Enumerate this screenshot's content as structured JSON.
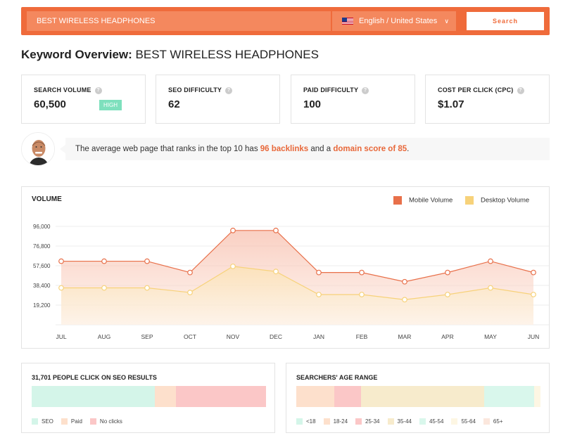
{
  "search": {
    "query": "BEST WIRELESS HEADPHONES",
    "language": "English / United States",
    "button": "Search"
  },
  "title": {
    "prefix": "Keyword Overview:",
    "keyword": "BEST WIRELESS HEADPHONES"
  },
  "metrics": [
    {
      "label": "SEARCH VOLUME",
      "value": "60,500",
      "badge": "HIGH"
    },
    {
      "label": "SEO DIFFICULTY",
      "value": "62"
    },
    {
      "label": "PAID DIFFICULTY",
      "value": "100"
    },
    {
      "label": "COST PER CLICK (CPC)",
      "value": "$1.07"
    }
  ],
  "tip": {
    "pre": "The average web page that ranks in the top 10 has ",
    "backlinks": "96 backlinks",
    "mid": " and a ",
    "domain": "domain score of 85",
    "post": "."
  },
  "volume": {
    "title": "VOLUME",
    "legend_mobile": "Mobile Volume",
    "legend_desktop": "Desktop Volume"
  },
  "colors": {
    "accent": "#ef6b3b",
    "mobile": "#e8704a",
    "desktop": "#f7d27a",
    "seo": "#d4f5e9",
    "paid": "#fde0cc",
    "noclick": "#fbc7c7"
  },
  "chart_data": {
    "type": "area",
    "categories": [
      "JUL",
      "AUG",
      "SEP",
      "OCT",
      "NOV",
      "DEC",
      "JAN",
      "FEB",
      "MAR",
      "APR",
      "MAY",
      "JUN"
    ],
    "y_ticks": [
      "96,000",
      "76,800",
      "57,600",
      "38,400",
      "19,200"
    ],
    "ylim": [
      0,
      96000
    ],
    "series": [
      {
        "name": "Mobile Volume",
        "values": [
          62000,
          62000,
          62000,
          51000,
          92000,
          92000,
          51000,
          51000,
          42000,
          51000,
          62000,
          51000
        ]
      },
      {
        "name": "Desktop Volume",
        "values": [
          36000,
          36000,
          36000,
          31500,
          57000,
          52000,
          29500,
          29500,
          24500,
          29500,
          36000,
          29500
        ]
      }
    ]
  },
  "clicks": {
    "title": "31,701 PEOPLE CLICK ON SEO RESULTS",
    "segments": [
      {
        "label": "SEO",
        "value": 52.5
      },
      {
        "label": "Paid",
        "value": 9
      },
      {
        "label": "No clicks",
        "value": 38.5
      }
    ]
  },
  "age": {
    "title": "SEARCHERS' AGE RANGE",
    "segments": [
      {
        "label": "<18",
        "value": 0,
        "color": "#d4f5e9"
      },
      {
        "label": "18-24",
        "value": 15.5,
        "color": "#fde0cc"
      },
      {
        "label": "25-34",
        "value": 11,
        "color": "#fbc7c7"
      },
      {
        "label": "35-44",
        "value": 50.5,
        "color": "#f7ebcc"
      },
      {
        "label": "45-54",
        "value": 20.5,
        "color": "#d9f7ec"
      },
      {
        "label": "55-64",
        "value": 2.5,
        "color": "#fdf6e3"
      },
      {
        "label": "65+",
        "value": 0,
        "color": "#fbe7dd"
      }
    ]
  }
}
